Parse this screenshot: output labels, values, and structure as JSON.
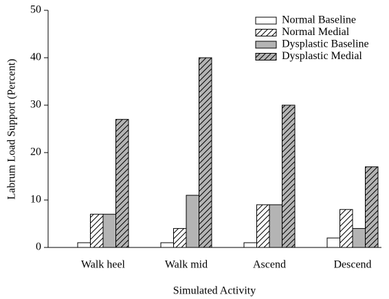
{
  "chart_data": {
    "type": "bar",
    "x_label": "Simulated Activity",
    "y_label": "Labrum Load Support (Percent)",
    "categories": [
      "Walk heel",
      "Walk mid",
      "Ascend",
      "Descend"
    ],
    "series": [
      {
        "name": "Normal Baseline",
        "color": "#ffffff",
        "hatch": false,
        "values": [
          1,
          1,
          1,
          2
        ]
      },
      {
        "name": "Normal Medial",
        "color": "#ffffff",
        "hatch": true,
        "values": [
          7,
          4,
          9,
          8
        ]
      },
      {
        "name": "Dysplastic Baseline",
        "color": "#b4b4b4",
        "hatch": false,
        "values": [
          7,
          11,
          9,
          4
        ]
      },
      {
        "name": "Dysplastic Medial",
        "color": "#b4b4b4",
        "hatch": true,
        "values": [
          27,
          40,
          30,
          17
        ]
      }
    ],
    "ylim": [
      0,
      50
    ],
    "yticks": [
      0,
      10,
      20,
      30,
      40,
      50
    ],
    "legend": "top-right"
  }
}
